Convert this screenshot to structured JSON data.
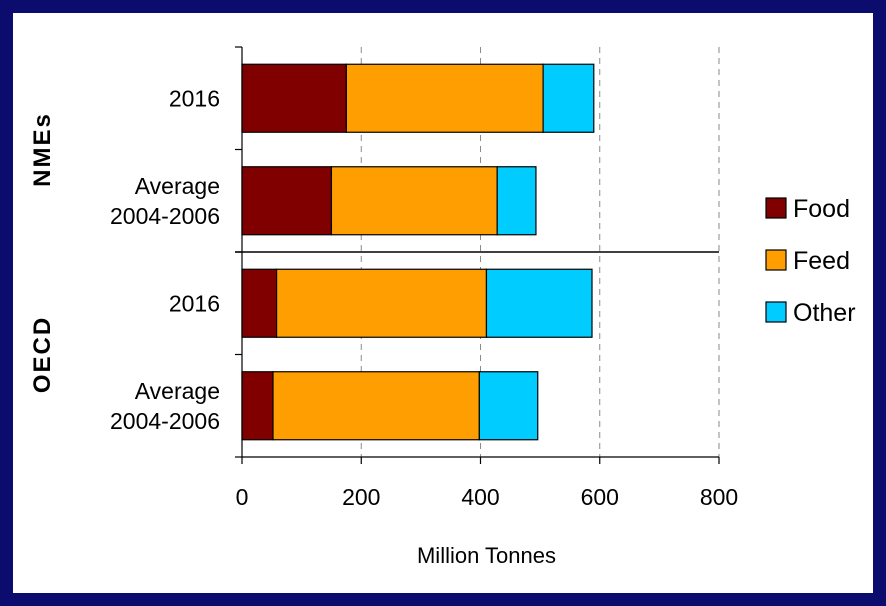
{
  "chart_data": {
    "type": "bar",
    "orientation": "horizontal",
    "stacked": true,
    "xlabel": "Million Tonnes",
    "xlim": [
      0,
      800
    ],
    "xticks": [
      0,
      200,
      400,
      600,
      800
    ],
    "grid": "vertical-dashed",
    "legend_position": "right",
    "groups": [
      {
        "name": "NMEs",
        "categories": [
          "2016",
          "Average 2004-2006"
        ]
      },
      {
        "name": "OECD",
        "categories": [
          "2016",
          "Average 2004-2006"
        ]
      }
    ],
    "bars": [
      {
        "group": "NMEs",
        "label_lines": [
          "2016"
        ],
        "values": [
          175,
          330,
          85
        ]
      },
      {
        "group": "NMEs",
        "label_lines": [
          "Average",
          "2004-2006"
        ],
        "values": [
          150,
          278,
          65
        ]
      },
      {
        "group": "OECD",
        "label_lines": [
          "2016"
        ],
        "values": [
          58,
          352,
          177
        ]
      },
      {
        "group": "OECD",
        "label_lines": [
          "Average",
          "2004-2006"
        ],
        "values": [
          52,
          346,
          98
        ]
      }
    ],
    "series": [
      {
        "name": "Food",
        "color": "#800000"
      },
      {
        "name": "Feed",
        "color": "#ff9e00"
      },
      {
        "name": "Other",
        "color": "#00ccff"
      }
    ]
  }
}
